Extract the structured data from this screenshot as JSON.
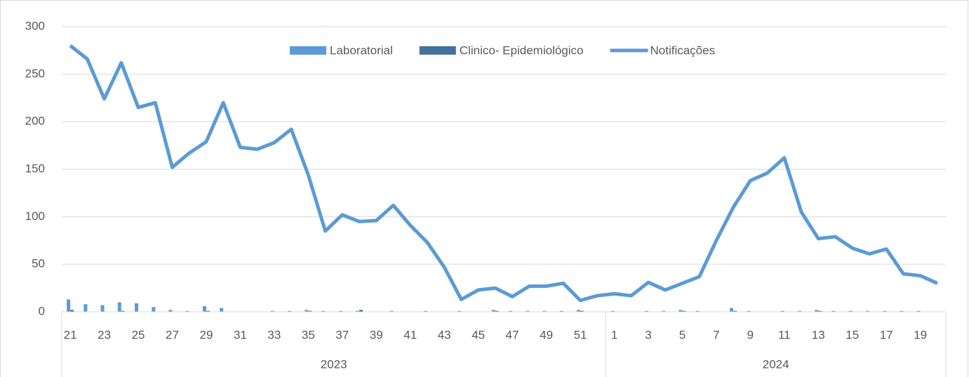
{
  "chart_data": {
    "type": "bar_line",
    "groups": [
      {
        "label": "2023",
        "categories": [
          "21",
          null,
          "23",
          null,
          "25",
          null,
          "27",
          null,
          "29",
          null,
          "31",
          null,
          "33",
          null,
          "35",
          null,
          "37",
          null,
          "39",
          null,
          "41",
          null,
          "43",
          null,
          "45",
          null,
          "47",
          null,
          "49",
          null,
          "51",
          null
        ]
      },
      {
        "label": "2024",
        "categories": [
          "1",
          null,
          "3",
          null,
          "5",
          null,
          "7",
          null,
          "9",
          null,
          "11",
          null,
          "13",
          null,
          "15",
          null,
          "17",
          null,
          "19",
          null
        ]
      }
    ],
    "series": [
      {
        "name": "Laboratorial",
        "type": "bar",
        "color": "#5b9bd5",
        "values": [
          13,
          8,
          7,
          10,
          9,
          5,
          2,
          1,
          6,
          4,
          0,
          0,
          1,
          1,
          2,
          1,
          1,
          1,
          0,
          1,
          0,
          1,
          0,
          1,
          0,
          2,
          1,
          1,
          1,
          1,
          2,
          0,
          1,
          0,
          1,
          1,
          2,
          1,
          0,
          4,
          1,
          0,
          1,
          1,
          2,
          1,
          1,
          1,
          1,
          1,
          1,
          0
        ]
      },
      {
        "name": "Clinico- Epidemiológico",
        "type": "bar",
        "color": "#41719c",
        "values": [
          2,
          0,
          0,
          1,
          0,
          0,
          0,
          0,
          1,
          0,
          0,
          0,
          0,
          0,
          1,
          0,
          0,
          2,
          0,
          0,
          0,
          0,
          0,
          0,
          0,
          1,
          0,
          0,
          0,
          0,
          1,
          0,
          0,
          0,
          0,
          0,
          1,
          0,
          0,
          1,
          0,
          0,
          0,
          0,
          1,
          0,
          0,
          0,
          0,
          0,
          0,
          0
        ]
      },
      {
        "name": "Notificações",
        "type": "line",
        "color": "#5b9bd5",
        "values": [
          280,
          266,
          224,
          262,
          215,
          220,
          152,
          167,
          179,
          220,
          173,
          171,
          178,
          192,
          144,
          85,
          102,
          95,
          96,
          112,
          91,
          73,
          47,
          13,
          23,
          25,
          16,
          27,
          27,
          30,
          12,
          17,
          19,
          17,
          31,
          23,
          30,
          37,
          75,
          110,
          138,
          146,
          162,
          105,
          77,
          79,
          67,
          61,
          66,
          40,
          38,
          30
        ]
      }
    ],
    "ylim": [
      0,
      300
    ],
    "yticks": [
      0,
      50,
      100,
      150,
      200,
      250,
      300
    ],
    "grid": true,
    "legend": "top"
  }
}
